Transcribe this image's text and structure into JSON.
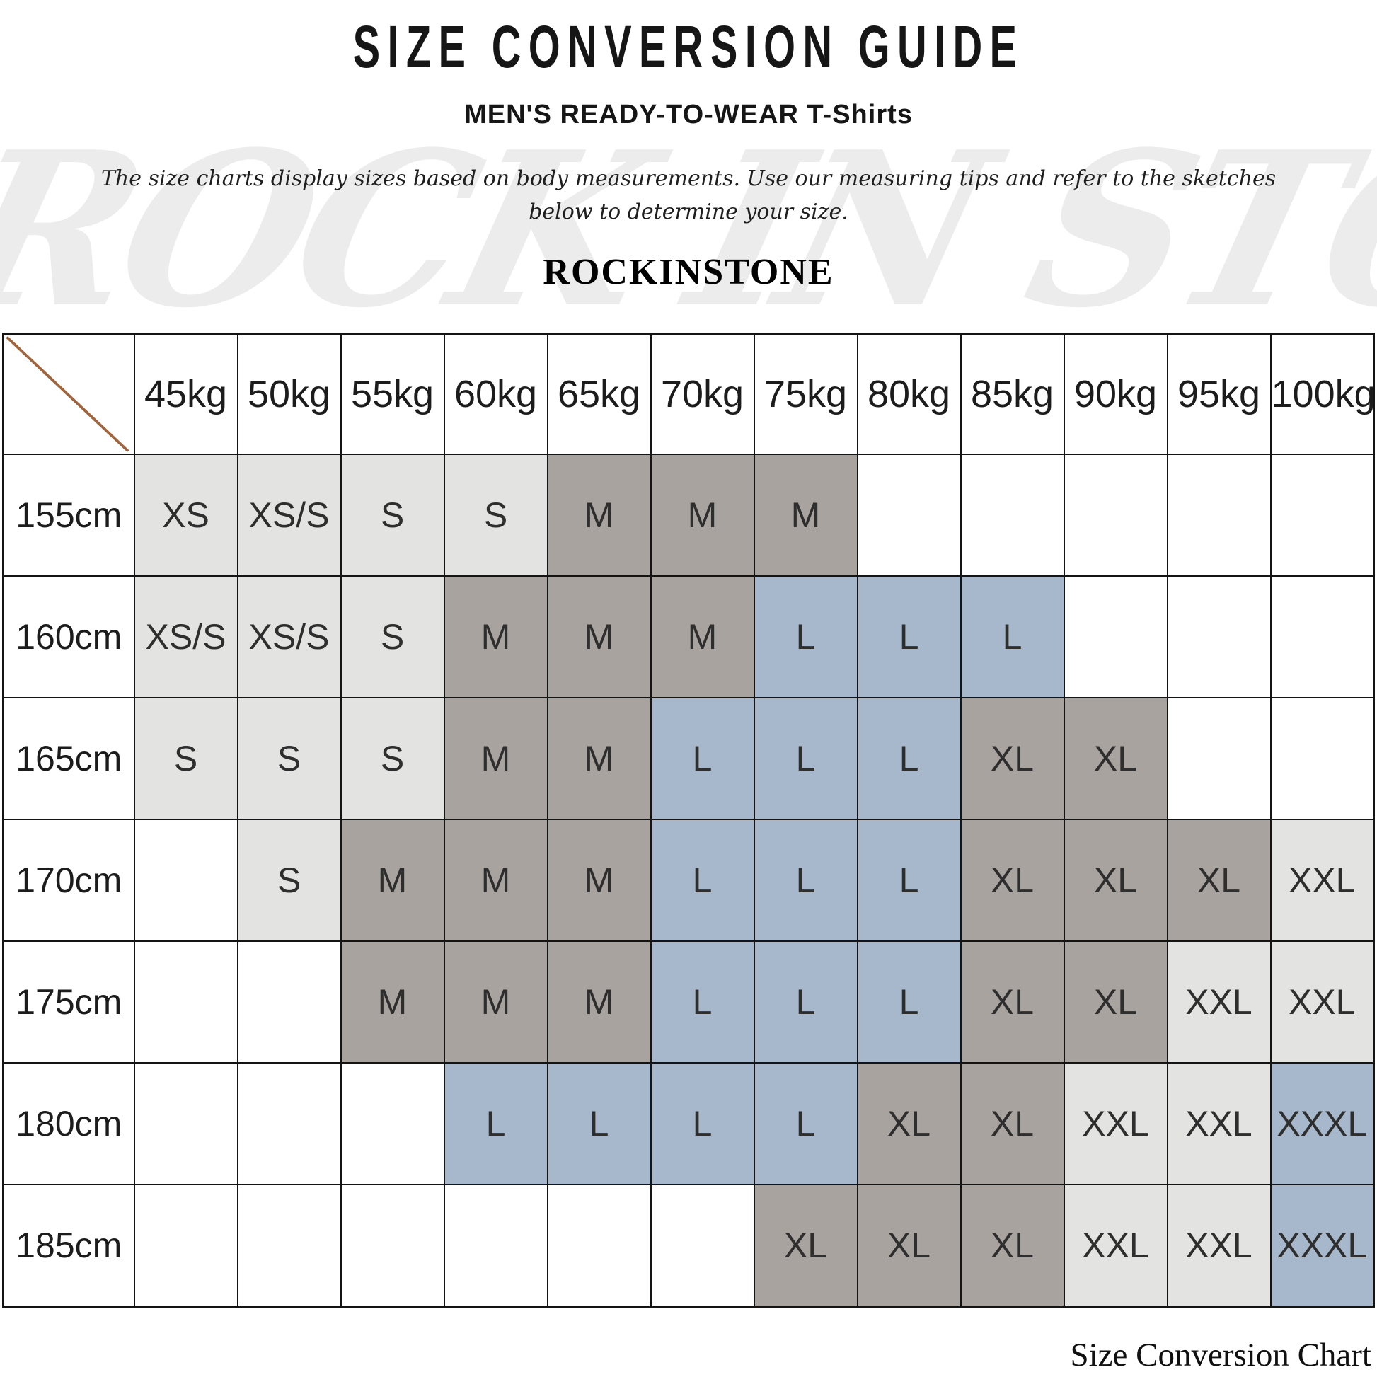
{
  "page": {
    "title": "SIZE CONVERSION GUIDE",
    "subtitle": "MEN'S READY-TO-WEAR T-Shirts",
    "description_line1": "The size charts display sizes based on body measurements.  Use our measuring tips and refer to the sketches",
    "description_line2": "below to determine your size.",
    "brand": "ROCKINSTONE",
    "watermark": "ROCK IN STONE",
    "caption": "Size Conversion Chart"
  },
  "colors": {
    "light": "#e3e3e2",
    "mid": "#a8a39e",
    "blue": "#a8b8cc",
    "none": "transparent",
    "border": "#141414",
    "diagonal": "#a0653c",
    "watermark": "#ececec"
  },
  "chart_data": {
    "type": "table",
    "title": "SIZE CONVERSION GUIDE",
    "corner_icon": "diagonal-line",
    "weight_headers": [
      "45kg",
      "50kg",
      "55kg",
      "60kg",
      "65kg",
      "70kg",
      "75kg",
      "80kg",
      "85kg",
      "90kg",
      "95kg",
      "100kg"
    ],
    "rows": [
      {
        "height": "155cm",
        "cells": [
          {
            "label": "XS",
            "tone": "light"
          },
          {
            "label": "XS/S",
            "tone": "light"
          },
          {
            "label": "S",
            "tone": "light"
          },
          {
            "label": "S",
            "tone": "light"
          },
          {
            "label": "M",
            "tone": "mid"
          },
          {
            "label": "M",
            "tone": "mid"
          },
          {
            "label": "M",
            "tone": "mid"
          },
          {
            "label": "",
            "tone": "none"
          },
          {
            "label": "",
            "tone": "none"
          },
          {
            "label": "",
            "tone": "none"
          },
          {
            "label": "",
            "tone": "none"
          },
          {
            "label": "",
            "tone": "none"
          }
        ]
      },
      {
        "height": "160cm",
        "cells": [
          {
            "label": "XS/S",
            "tone": "light"
          },
          {
            "label": "XS/S",
            "tone": "light"
          },
          {
            "label": "S",
            "tone": "light"
          },
          {
            "label": "M",
            "tone": "mid"
          },
          {
            "label": "M",
            "tone": "mid"
          },
          {
            "label": "M",
            "tone": "mid"
          },
          {
            "label": "L",
            "tone": "blue"
          },
          {
            "label": "L",
            "tone": "blue"
          },
          {
            "label": "L",
            "tone": "blue"
          },
          {
            "label": "",
            "tone": "none"
          },
          {
            "label": "",
            "tone": "none"
          },
          {
            "label": "",
            "tone": "none"
          }
        ]
      },
      {
        "height": "165cm",
        "cells": [
          {
            "label": "S",
            "tone": "light"
          },
          {
            "label": "S",
            "tone": "light"
          },
          {
            "label": "S",
            "tone": "light"
          },
          {
            "label": "M",
            "tone": "mid"
          },
          {
            "label": "M",
            "tone": "mid"
          },
          {
            "label": "L",
            "tone": "blue"
          },
          {
            "label": "L",
            "tone": "blue"
          },
          {
            "label": "L",
            "tone": "blue"
          },
          {
            "label": "XL",
            "tone": "mid"
          },
          {
            "label": "XL",
            "tone": "mid"
          },
          {
            "label": "",
            "tone": "none"
          },
          {
            "label": "",
            "tone": "none"
          }
        ]
      },
      {
        "height": "170cm",
        "cells": [
          {
            "label": "",
            "tone": "none"
          },
          {
            "label": "S",
            "tone": "light"
          },
          {
            "label": "M",
            "tone": "mid"
          },
          {
            "label": "M",
            "tone": "mid"
          },
          {
            "label": "M",
            "tone": "mid"
          },
          {
            "label": "L",
            "tone": "blue"
          },
          {
            "label": "L",
            "tone": "blue"
          },
          {
            "label": "L",
            "tone": "blue"
          },
          {
            "label": "XL",
            "tone": "mid"
          },
          {
            "label": "XL",
            "tone": "mid"
          },
          {
            "label": "XL",
            "tone": "mid"
          },
          {
            "label": "XXL",
            "tone": "light"
          }
        ]
      },
      {
        "height": "175cm",
        "cells": [
          {
            "label": "",
            "tone": "none"
          },
          {
            "label": "",
            "tone": "none"
          },
          {
            "label": "M",
            "tone": "mid"
          },
          {
            "label": "M",
            "tone": "mid"
          },
          {
            "label": "M",
            "tone": "mid"
          },
          {
            "label": "L",
            "tone": "blue"
          },
          {
            "label": "L",
            "tone": "blue"
          },
          {
            "label": "L",
            "tone": "blue"
          },
          {
            "label": "XL",
            "tone": "mid"
          },
          {
            "label": "XL",
            "tone": "mid"
          },
          {
            "label": "XXL",
            "tone": "light"
          },
          {
            "label": "XXL",
            "tone": "light"
          }
        ]
      },
      {
        "height": "180cm",
        "cells": [
          {
            "label": "",
            "tone": "none"
          },
          {
            "label": "",
            "tone": "none"
          },
          {
            "label": "",
            "tone": "none"
          },
          {
            "label": "L",
            "tone": "blue"
          },
          {
            "label": "L",
            "tone": "blue"
          },
          {
            "label": "L",
            "tone": "blue"
          },
          {
            "label": "L",
            "tone": "blue"
          },
          {
            "label": "XL",
            "tone": "mid"
          },
          {
            "label": "XL",
            "tone": "mid"
          },
          {
            "label": "XXL",
            "tone": "light"
          },
          {
            "label": "XXL",
            "tone": "light"
          },
          {
            "label": "XXXL",
            "tone": "blue"
          }
        ]
      },
      {
        "height": "185cm",
        "cells": [
          {
            "label": "",
            "tone": "none"
          },
          {
            "label": "",
            "tone": "none"
          },
          {
            "label": "",
            "tone": "none"
          },
          {
            "label": "",
            "tone": "none"
          },
          {
            "label": "",
            "tone": "none"
          },
          {
            "label": "",
            "tone": "none"
          },
          {
            "label": "XL",
            "tone": "mid"
          },
          {
            "label": "XL",
            "tone": "mid"
          },
          {
            "label": "XL",
            "tone": "mid"
          },
          {
            "label": "XXL",
            "tone": "light"
          },
          {
            "label": "XXL",
            "tone": "light"
          },
          {
            "label": "XXXL",
            "tone": "blue"
          }
        ]
      }
    ]
  }
}
